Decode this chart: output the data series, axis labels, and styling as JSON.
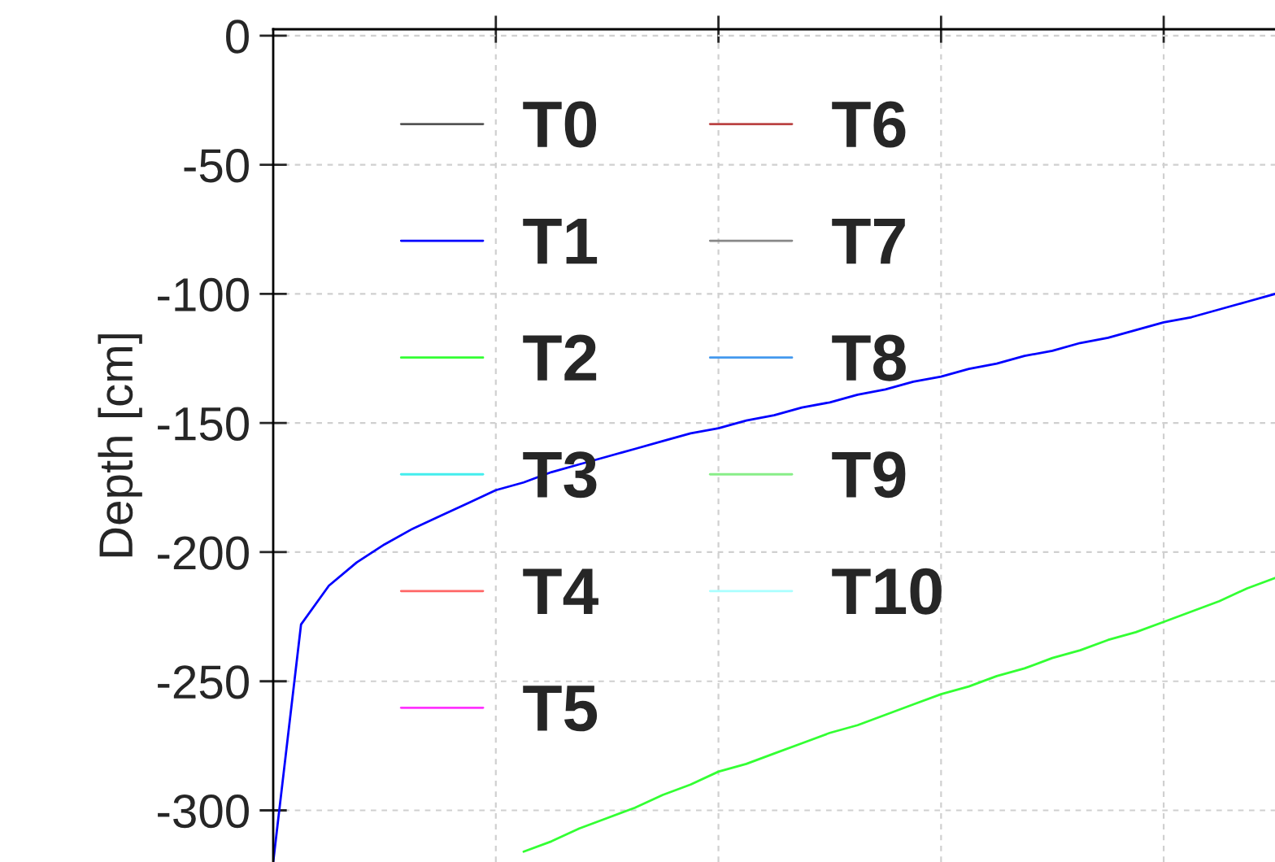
{
  "chart_data": {
    "type": "line",
    "ylabel": "Depth [cm]",
    "categories": [
      null,
      null,
      null,
      null,
      null,
      null,
      null,
      null,
      null,
      null,
      null,
      null,
      null,
      null,
      null,
      null,
      null,
      null,
      null,
      null,
      null,
      null,
      null,
      null,
      null,
      null,
      null,
      null,
      null,
      null,
      null,
      null,
      null,
      null,
      null,
      null,
      null
    ],
    "ylim": [
      -320,
      2.5
    ],
    "yticks": [
      0,
      -50,
      -100,
      -150,
      -200,
      -250,
      -300
    ],
    "tick_labels": "y",
    "grid": true,
    "legend": "top left",
    "line_style": "solid",
    "marker": "none",
    "series": [
      {
        "name": "T0",
        "color": "#555555",
        "values": [
          null,
          null,
          null,
          null,
          null,
          null,
          null,
          null,
          null,
          null,
          null,
          null,
          null,
          null,
          null,
          null,
          null,
          null,
          null,
          null,
          null,
          null,
          null,
          null,
          null,
          null,
          null,
          null,
          null,
          null,
          null,
          null,
          null,
          null,
          null,
          null,
          null
        ]
      },
      {
        "name": "T1",
        "color": "#0000ff",
        "values": [
          -320,
          -228,
          -213,
          -204,
          -197,
          -191,
          -186,
          -181,
          -176,
          -173,
          -169,
          -166,
          -163,
          -160,
          -157,
          -154,
          -152,
          -149,
          -147,
          -144,
          -142,
          -139,
          -137,
          -134,
          -132,
          -129,
          -127,
          -124,
          -122,
          -119,
          -117,
          -114,
          -111,
          -109,
          -106,
          -103,
          -100
        ]
      },
      {
        "name": "T2",
        "color": "#33ff33",
        "values": [
          null,
          null,
          null,
          null,
          null,
          null,
          null,
          null,
          null,
          -316,
          -312,
          -307,
          -303,
          -299,
          -294,
          -290,
          -285,
          -282,
          -278,
          -274,
          -270,
          -267,
          -263,
          -259,
          -255,
          -252,
          -248,
          -245,
          -241,
          -238,
          -234,
          -231,
          -227,
          -223,
          -219,
          -214,
          -210
        ]
      },
      {
        "name": "T3",
        "color": "#44eeee",
        "values": [
          null,
          null,
          null,
          null,
          null,
          null,
          null,
          null,
          null,
          null,
          null,
          null,
          null,
          null,
          null,
          null,
          null,
          null,
          null,
          null,
          null,
          null,
          null,
          null,
          null,
          null,
          null,
          null,
          null,
          null,
          null,
          null,
          null,
          null,
          null,
          null,
          null
        ]
      },
      {
        "name": "T4",
        "color": "#ff6666",
        "values": [
          null,
          null,
          null,
          null,
          null,
          null,
          null,
          null,
          null,
          null,
          null,
          null,
          null,
          null,
          null,
          null,
          null,
          null,
          null,
          null,
          null,
          null,
          null,
          null,
          null,
          null,
          null,
          null,
          null,
          null,
          null,
          null,
          null,
          null,
          null,
          null,
          null
        ]
      },
      {
        "name": "T5",
        "color": "#ff33ff",
        "values": [
          null,
          null,
          null,
          null,
          null,
          null,
          null,
          null,
          null,
          null,
          null,
          null,
          null,
          null,
          null,
          null,
          null,
          null,
          null,
          null,
          null,
          null,
          null,
          null,
          null,
          null,
          null,
          null,
          null,
          null,
          null,
          null,
          null,
          null,
          null,
          null,
          null
        ]
      },
      {
        "name": "T6",
        "color": "#bb4444",
        "values": [
          null,
          null,
          null,
          null,
          null,
          null,
          null,
          null,
          null,
          null,
          null,
          null,
          null,
          null,
          null,
          null,
          null,
          null,
          null,
          null,
          null,
          null,
          null,
          null,
          null,
          null,
          null,
          null,
          null,
          null,
          null,
          null,
          null,
          null,
          null,
          null,
          null
        ]
      },
      {
        "name": "T7",
        "color": "#888888",
        "values": [
          null,
          null,
          null,
          null,
          null,
          null,
          null,
          null,
          null,
          null,
          null,
          null,
          null,
          null,
          null,
          null,
          null,
          null,
          null,
          null,
          null,
          null,
          null,
          null,
          null,
          null,
          null,
          null,
          null,
          null,
          null,
          null,
          null,
          null,
          null,
          null,
          null
        ]
      },
      {
        "name": "T8",
        "color": "#4499ee",
        "values": [
          null,
          null,
          null,
          null,
          null,
          null,
          null,
          null,
          null,
          null,
          null,
          null,
          null,
          null,
          null,
          null,
          null,
          null,
          null,
          null,
          null,
          null,
          null,
          null,
          null,
          null,
          null,
          null,
          null,
          null,
          null,
          null,
          null,
          null,
          null,
          null,
          null
        ]
      },
      {
        "name": "T9",
        "color": "#88ee88",
        "values": [
          null,
          null,
          null,
          null,
          null,
          null,
          null,
          null,
          null,
          null,
          null,
          null,
          null,
          null,
          null,
          null,
          null,
          null,
          null,
          null,
          null,
          null,
          null,
          null,
          null,
          null,
          null,
          null,
          null,
          null,
          null,
          null,
          null,
          null,
          null,
          null,
          null
        ]
      },
      {
        "name": "T10",
        "color": "#aaffff",
        "values": [
          null,
          null,
          null,
          null,
          null,
          null,
          null,
          null,
          null,
          null,
          null,
          null,
          null,
          null,
          null,
          null,
          null,
          null,
          null,
          null,
          null,
          null,
          null,
          null,
          null,
          null,
          null,
          null,
          null,
          null,
          null,
          null,
          null,
          null,
          null,
          null,
          null
        ]
      }
    ]
  }
}
